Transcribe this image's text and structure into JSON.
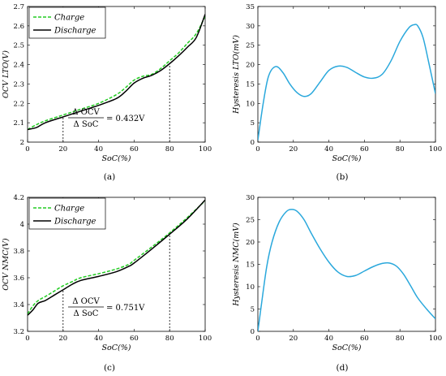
{
  "chart_data": [
    {
      "id": "a",
      "type": "line",
      "caption": "(a)",
      "xlabel": "SoC(%)",
      "ylabel": "OCV LTO(V)",
      "xlim": [
        0,
        100
      ],
      "ylim": [
        2.0,
        2.7
      ],
      "xticks": [
        0,
        20,
        40,
        60,
        80,
        100
      ],
      "yticks": [
        2.0,
        2.1,
        2.2,
        2.3,
        2.4,
        2.5,
        2.6,
        2.7
      ],
      "ytick_labels": [
        "2",
        "2.1",
        "2.2",
        "2.3",
        "2.4",
        "2.5",
        "2.6",
        "2.7"
      ],
      "legend": "top-left",
      "series": [
        {
          "name": "Charge",
          "color": "#22cc22",
          "dash": true,
          "x": [
            0,
            5,
            10,
            20,
            30,
            40,
            50,
            55,
            60,
            65,
            70,
            75,
            80,
            85,
            90,
            95,
            100
          ],
          "y": [
            2.065,
            2.09,
            2.11,
            2.14,
            2.17,
            2.2,
            2.245,
            2.28,
            2.32,
            2.34,
            2.35,
            2.38,
            2.42,
            2.46,
            2.51,
            2.56,
            2.65
          ]
        },
        {
          "name": "Discharge",
          "color": "#000000",
          "dash": false,
          "x": [
            0,
            5,
            10,
            20,
            30,
            40,
            50,
            55,
            60,
            65,
            70,
            75,
            80,
            85,
            90,
            95,
            100
          ],
          "y": [
            2.065,
            2.075,
            2.1,
            2.13,
            2.16,
            2.19,
            2.225,
            2.26,
            2.305,
            2.33,
            2.345,
            2.37,
            2.405,
            2.445,
            2.49,
            2.54,
            2.66
          ]
        }
      ],
      "markers_x": [
        20,
        80
      ],
      "annotation": {
        "numerator": "Δ OCV",
        "denominator": "Δ SoC",
        "value": "= 0.432V"
      }
    },
    {
      "id": "b",
      "type": "line",
      "caption": "(b)",
      "xlabel": "SoC(%)",
      "ylabel": "Hysteresis LTO(mV)",
      "xlim": [
        0,
        100
      ],
      "ylim": [
        0,
        35
      ],
      "xticks": [
        0,
        20,
        40,
        60,
        80,
        100
      ],
      "yticks": [
        0,
        5,
        10,
        15,
        20,
        25,
        30,
        35
      ],
      "ytick_labels": [
        "0",
        "5",
        "10",
        "15",
        "20",
        "25",
        "30",
        "35"
      ],
      "series": [
        {
          "color": "#2aa8dc",
          "dash": false,
          "x": [
            0,
            3,
            6,
            10,
            14,
            18,
            22,
            26,
            30,
            35,
            40,
            45,
            50,
            55,
            60,
            65,
            70,
            75,
            80,
            85,
            88,
            90,
            93,
            96,
            100
          ],
          "y": [
            0.5,
            10,
            17,
            19.5,
            18,
            15,
            12.8,
            11.8,
            12.5,
            15.5,
            18.5,
            19.6,
            19.3,
            18,
            16.8,
            16.5,
            17.5,
            21,
            26,
            29.5,
            30.3,
            30,
            27,
            21,
            12.5
          ]
        }
      ]
    },
    {
      "id": "c",
      "type": "line",
      "caption": "(c)",
      "xlabel": "SoC(%)",
      "ylabel": "OCV NMC(V)",
      "xlim": [
        0,
        100
      ],
      "ylim": [
        3.2,
        4.2
      ],
      "xticks": [
        0,
        20,
        40,
        60,
        80,
        100
      ],
      "yticks": [
        3.2,
        3.4,
        3.6,
        3.8,
        4.0,
        4.2
      ],
      "ytick_labels": [
        "3.2",
        "3.4",
        "3.6",
        "3.8",
        "4",
        "4.2"
      ],
      "legend": "top-left",
      "series": [
        {
          "name": "Charge",
          "color": "#22cc22",
          "dash": true,
          "x": [
            0,
            3,
            6,
            10,
            15,
            20,
            25,
            30,
            40,
            50,
            57,
            60,
            70,
            80,
            90,
            100
          ],
          "y": [
            3.33,
            3.39,
            3.43,
            3.46,
            3.5,
            3.54,
            3.57,
            3.6,
            3.63,
            3.665,
            3.7,
            3.73,
            3.83,
            3.935,
            4.05,
            4.175
          ]
        },
        {
          "name": "Discharge",
          "color": "#000000",
          "dash": false,
          "x": [
            0,
            3,
            6,
            10,
            15,
            20,
            25,
            30,
            40,
            50,
            57,
            60,
            70,
            80,
            90,
            100
          ],
          "y": [
            3.32,
            3.36,
            3.41,
            3.43,
            3.47,
            3.51,
            3.55,
            3.58,
            3.61,
            3.645,
            3.685,
            3.71,
            3.815,
            3.925,
            4.04,
            4.18
          ]
        }
      ],
      "markers_x": [
        20,
        80
      ],
      "annotation": {
        "numerator": "Δ OCV",
        "denominator": "Δ SoC",
        "value": "= 0.751V"
      }
    },
    {
      "id": "d",
      "type": "line",
      "caption": "(d)",
      "xlabel": "SoC(%)",
      "ylabel": "Hysteresis NMC(mV)",
      "xlim": [
        0,
        100
      ],
      "ylim": [
        0,
        30
      ],
      "xticks": [
        0,
        20,
        40,
        60,
        80,
        100
      ],
      "yticks": [
        0,
        5,
        10,
        15,
        20,
        25,
        30
      ],
      "ytick_labels": [
        "0",
        "5",
        "10",
        "15",
        "20",
        "25",
        "30"
      ],
      "series": [
        {
          "color": "#2aa8dc",
          "dash": false,
          "x": [
            0,
            2,
            5,
            8,
            12,
            16,
            19,
            22,
            26,
            30,
            35,
            40,
            45,
            50,
            55,
            60,
            65,
            70,
            74,
            78,
            82,
            86,
            90,
            95,
            100
          ],
          "y": [
            0,
            6,
            14.5,
            20,
            24.5,
            26.8,
            27.3,
            26.9,
            25,
            22,
            18.5,
            15.5,
            13.3,
            12.3,
            12.5,
            13.5,
            14.5,
            15.2,
            15.3,
            14.6,
            12.8,
            10.2,
            7.5,
            5,
            2.8
          ]
        }
      ]
    }
  ]
}
